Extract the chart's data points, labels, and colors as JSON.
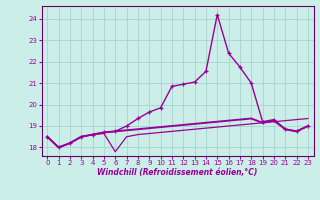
{
  "xlabel": "Windchill (Refroidissement éolien,°C)",
  "background_color": "#cceee8",
  "grid_color": "#aad8d2",
  "line_color": "#990099",
  "spine_color": "#660066",
  "x_hours": [
    0,
    1,
    2,
    3,
    4,
    5,
    6,
    7,
    8,
    9,
    10,
    11,
    12,
    13,
    14,
    15,
    16,
    17,
    18,
    19,
    20,
    21,
    22,
    23
  ],
  "line_main": [
    18.5,
    18.0,
    18.2,
    18.5,
    18.6,
    18.7,
    18.75,
    19.0,
    19.35,
    19.65,
    19.85,
    20.85,
    20.95,
    21.05,
    21.55,
    24.2,
    22.4,
    21.75,
    21.0,
    19.2,
    19.3,
    18.85,
    18.75,
    19.0
  ],
  "line_low": [
    18.5,
    18.0,
    18.2,
    18.5,
    18.6,
    18.65,
    17.8,
    18.5,
    18.6,
    18.65,
    18.7,
    18.75,
    18.8,
    18.85,
    18.9,
    18.95,
    19.0,
    19.05,
    19.1,
    19.15,
    19.2,
    19.25,
    19.3,
    19.35
  ],
  "line_mid": [
    18.5,
    18.0,
    18.2,
    18.5,
    18.6,
    18.7,
    18.75,
    18.8,
    18.85,
    18.9,
    18.95,
    19.0,
    19.05,
    19.1,
    19.15,
    19.2,
    19.25,
    19.3,
    19.35,
    19.15,
    19.25,
    18.85,
    18.75,
    19.0
  ],
  "ylim": [
    17.6,
    24.6
  ],
  "yticks": [
    18,
    19,
    20,
    21,
    22,
    23,
    24
  ],
  "xlim": [
    -0.5,
    23.5
  ],
  "xticks": [
    0,
    1,
    2,
    3,
    4,
    5,
    6,
    7,
    8,
    9,
    10,
    11,
    12,
    13,
    14,
    15,
    16,
    17,
    18,
    19,
    20,
    21,
    22,
    23
  ]
}
